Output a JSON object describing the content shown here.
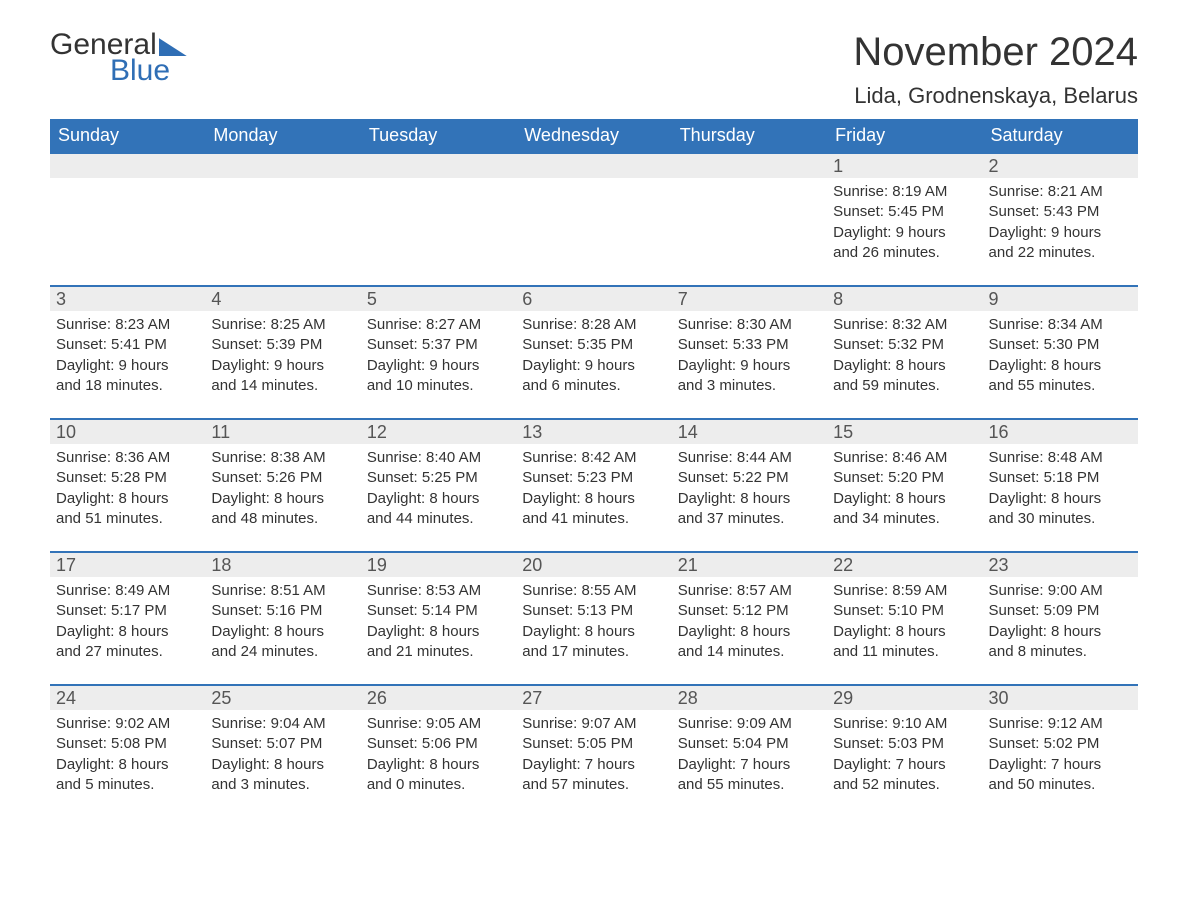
{
  "logo": {
    "word1": "General",
    "word2": "Blue"
  },
  "title": "November 2024",
  "location": "Lida, Grodnenskaya, Belarus",
  "colors": {
    "header_bg": "#3273b8",
    "header_text": "#ffffff",
    "rule": "#3273b8",
    "daynum_bg": "#ededed",
    "text": "#333333",
    "logo_accent": "#2f6eb5",
    "page_bg": "#ffffff"
  },
  "typography": {
    "title_fontsize": 40,
    "location_fontsize": 22,
    "dow_fontsize": 18,
    "daynum_fontsize": 18,
    "body_fontsize": 15,
    "font_family": "Arial"
  },
  "layout": {
    "columns": 7,
    "rows": 5,
    "first_weekday_index": 5
  },
  "days_of_week": [
    "Sunday",
    "Monday",
    "Tuesday",
    "Wednesday",
    "Thursday",
    "Friday",
    "Saturday"
  ],
  "weeks": [
    [
      {
        "n": "",
        "sunrise": "",
        "sunset": "",
        "day_l1": "",
        "day_l2": ""
      },
      {
        "n": "",
        "sunrise": "",
        "sunset": "",
        "day_l1": "",
        "day_l2": ""
      },
      {
        "n": "",
        "sunrise": "",
        "sunset": "",
        "day_l1": "",
        "day_l2": ""
      },
      {
        "n": "",
        "sunrise": "",
        "sunset": "",
        "day_l1": "",
        "day_l2": ""
      },
      {
        "n": "",
        "sunrise": "",
        "sunset": "",
        "day_l1": "",
        "day_l2": ""
      },
      {
        "n": "1",
        "sunrise": "Sunrise: 8:19 AM",
        "sunset": "Sunset: 5:45 PM",
        "day_l1": "Daylight: 9 hours",
        "day_l2": "and 26 minutes."
      },
      {
        "n": "2",
        "sunrise": "Sunrise: 8:21 AM",
        "sunset": "Sunset: 5:43 PM",
        "day_l1": "Daylight: 9 hours",
        "day_l2": "and 22 minutes."
      }
    ],
    [
      {
        "n": "3",
        "sunrise": "Sunrise: 8:23 AM",
        "sunset": "Sunset: 5:41 PM",
        "day_l1": "Daylight: 9 hours",
        "day_l2": "and 18 minutes."
      },
      {
        "n": "4",
        "sunrise": "Sunrise: 8:25 AM",
        "sunset": "Sunset: 5:39 PM",
        "day_l1": "Daylight: 9 hours",
        "day_l2": "and 14 minutes."
      },
      {
        "n": "5",
        "sunrise": "Sunrise: 8:27 AM",
        "sunset": "Sunset: 5:37 PM",
        "day_l1": "Daylight: 9 hours",
        "day_l2": "and 10 minutes."
      },
      {
        "n": "6",
        "sunrise": "Sunrise: 8:28 AM",
        "sunset": "Sunset: 5:35 PM",
        "day_l1": "Daylight: 9 hours",
        "day_l2": "and 6 minutes."
      },
      {
        "n": "7",
        "sunrise": "Sunrise: 8:30 AM",
        "sunset": "Sunset: 5:33 PM",
        "day_l1": "Daylight: 9 hours",
        "day_l2": "and 3 minutes."
      },
      {
        "n": "8",
        "sunrise": "Sunrise: 8:32 AM",
        "sunset": "Sunset: 5:32 PM",
        "day_l1": "Daylight: 8 hours",
        "day_l2": "and 59 minutes."
      },
      {
        "n": "9",
        "sunrise": "Sunrise: 8:34 AM",
        "sunset": "Sunset: 5:30 PM",
        "day_l1": "Daylight: 8 hours",
        "day_l2": "and 55 minutes."
      }
    ],
    [
      {
        "n": "10",
        "sunrise": "Sunrise: 8:36 AM",
        "sunset": "Sunset: 5:28 PM",
        "day_l1": "Daylight: 8 hours",
        "day_l2": "and 51 minutes."
      },
      {
        "n": "11",
        "sunrise": "Sunrise: 8:38 AM",
        "sunset": "Sunset: 5:26 PM",
        "day_l1": "Daylight: 8 hours",
        "day_l2": "and 48 minutes."
      },
      {
        "n": "12",
        "sunrise": "Sunrise: 8:40 AM",
        "sunset": "Sunset: 5:25 PM",
        "day_l1": "Daylight: 8 hours",
        "day_l2": "and 44 minutes."
      },
      {
        "n": "13",
        "sunrise": "Sunrise: 8:42 AM",
        "sunset": "Sunset: 5:23 PM",
        "day_l1": "Daylight: 8 hours",
        "day_l2": "and 41 minutes."
      },
      {
        "n": "14",
        "sunrise": "Sunrise: 8:44 AM",
        "sunset": "Sunset: 5:22 PM",
        "day_l1": "Daylight: 8 hours",
        "day_l2": "and 37 minutes."
      },
      {
        "n": "15",
        "sunrise": "Sunrise: 8:46 AM",
        "sunset": "Sunset: 5:20 PM",
        "day_l1": "Daylight: 8 hours",
        "day_l2": "and 34 minutes."
      },
      {
        "n": "16",
        "sunrise": "Sunrise: 8:48 AM",
        "sunset": "Sunset: 5:18 PM",
        "day_l1": "Daylight: 8 hours",
        "day_l2": "and 30 minutes."
      }
    ],
    [
      {
        "n": "17",
        "sunrise": "Sunrise: 8:49 AM",
        "sunset": "Sunset: 5:17 PM",
        "day_l1": "Daylight: 8 hours",
        "day_l2": "and 27 minutes."
      },
      {
        "n": "18",
        "sunrise": "Sunrise: 8:51 AM",
        "sunset": "Sunset: 5:16 PM",
        "day_l1": "Daylight: 8 hours",
        "day_l2": "and 24 minutes."
      },
      {
        "n": "19",
        "sunrise": "Sunrise: 8:53 AM",
        "sunset": "Sunset: 5:14 PM",
        "day_l1": "Daylight: 8 hours",
        "day_l2": "and 21 minutes."
      },
      {
        "n": "20",
        "sunrise": "Sunrise: 8:55 AM",
        "sunset": "Sunset: 5:13 PM",
        "day_l1": "Daylight: 8 hours",
        "day_l2": "and 17 minutes."
      },
      {
        "n": "21",
        "sunrise": "Sunrise: 8:57 AM",
        "sunset": "Sunset: 5:12 PM",
        "day_l1": "Daylight: 8 hours",
        "day_l2": "and 14 minutes."
      },
      {
        "n": "22",
        "sunrise": "Sunrise: 8:59 AM",
        "sunset": "Sunset: 5:10 PM",
        "day_l1": "Daylight: 8 hours",
        "day_l2": "and 11 minutes."
      },
      {
        "n": "23",
        "sunrise": "Sunrise: 9:00 AM",
        "sunset": "Sunset: 5:09 PM",
        "day_l1": "Daylight: 8 hours",
        "day_l2": "and 8 minutes."
      }
    ],
    [
      {
        "n": "24",
        "sunrise": "Sunrise: 9:02 AM",
        "sunset": "Sunset: 5:08 PM",
        "day_l1": "Daylight: 8 hours",
        "day_l2": "and 5 minutes."
      },
      {
        "n": "25",
        "sunrise": "Sunrise: 9:04 AM",
        "sunset": "Sunset: 5:07 PM",
        "day_l1": "Daylight: 8 hours",
        "day_l2": "and 3 minutes."
      },
      {
        "n": "26",
        "sunrise": "Sunrise: 9:05 AM",
        "sunset": "Sunset: 5:06 PM",
        "day_l1": "Daylight: 8 hours",
        "day_l2": "and 0 minutes."
      },
      {
        "n": "27",
        "sunrise": "Sunrise: 9:07 AM",
        "sunset": "Sunset: 5:05 PM",
        "day_l1": "Daylight: 7 hours",
        "day_l2": "and 57 minutes."
      },
      {
        "n": "28",
        "sunrise": "Sunrise: 9:09 AM",
        "sunset": "Sunset: 5:04 PM",
        "day_l1": "Daylight: 7 hours",
        "day_l2": "and 55 minutes."
      },
      {
        "n": "29",
        "sunrise": "Sunrise: 9:10 AM",
        "sunset": "Sunset: 5:03 PM",
        "day_l1": "Daylight: 7 hours",
        "day_l2": "and 52 minutes."
      },
      {
        "n": "30",
        "sunrise": "Sunrise: 9:12 AM",
        "sunset": "Sunset: 5:02 PM",
        "day_l1": "Daylight: 7 hours",
        "day_l2": "and 50 minutes."
      }
    ]
  ]
}
